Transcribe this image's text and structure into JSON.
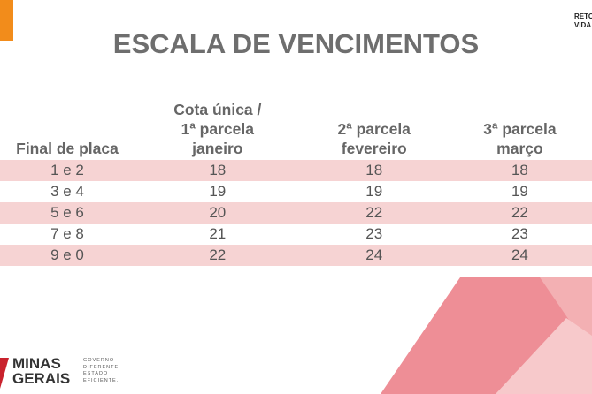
{
  "header": {
    "title": "ESCALA DE VENCIMENTOS",
    "corner_lines": [
      "RETO",
      "VIDA"
    ]
  },
  "table": {
    "headers": [
      "Final de placa",
      "Cota única /\n1ª parcela\njaneiro",
      "2ª parcela\nfevereiro",
      "3ª parcela\nmarço"
    ],
    "rows": [
      [
        "1 e 2",
        18,
        18,
        18
      ],
      [
        "3 e 4",
        19,
        19,
        19
      ],
      [
        "5 e 6",
        20,
        22,
        22
      ],
      [
        "7 e 8",
        21,
        23,
        23
      ],
      [
        "9 e 0",
        22,
        24,
        24
      ]
    ]
  },
  "logo": {
    "name_lines": [
      "MINAS",
      "GERAIS"
    ],
    "tagline_lines": [
      "GOVERNO",
      "DIFERENTE",
      "ESTADO",
      "EFICIENTE."
    ]
  }
}
